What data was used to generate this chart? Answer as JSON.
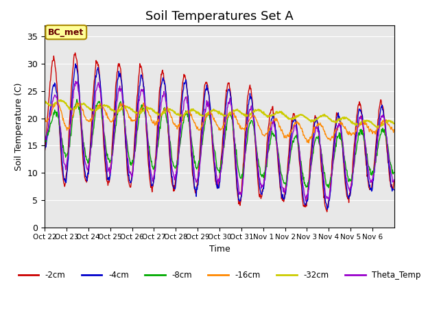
{
  "title": "Soil Temperatures Set A",
  "xlabel": "Time",
  "ylabel": "Soil Temperature (C)",
  "ylim": [
    0,
    37
  ],
  "yticks": [
    0,
    5,
    10,
    15,
    20,
    25,
    30,
    35
  ],
  "x_tick_labels": [
    "Oct 22",
    "Oct 23",
    "Oct 24",
    "Oct 25",
    "Oct 26",
    "Oct 27",
    "Oct 28",
    "Oct 29",
    "Oct 30",
    "Oct 31",
    "Nov 1",
    "Nov 2",
    "Nov 3",
    "Nov 4",
    "Nov 5",
    "Nov 6"
  ],
  "series_colors": {
    "-2cm": "#cc0000",
    "-4cm": "#0000cc",
    "-8cm": "#00aa00",
    "-16cm": "#ff8800",
    "-32cm": "#cccc00",
    "Theta_Temp": "#9900cc"
  },
  "annotation_text": "BC_met",
  "background_color": "#e8e8e8",
  "title_fontsize": 13,
  "n_days": 16,
  "pts_per_day": 48,
  "means_2cm": [
    21,
    20,
    19.5,
    19,
    18.5,
    18,
    17.5,
    17,
    16.5,
    16,
    14,
    13,
    12,
    11.5,
    14,
    15
  ],
  "amps_2cm": [
    9,
    12.5,
    11,
    11,
    11,
    11,
    10.5,
    10.5,
    9,
    12,
    8.5,
    8,
    8.5,
    8.5,
    8.5,
    8
  ],
  "means_4cm": [
    18.5,
    19,
    19,
    18.5,
    18,
    17.5,
    17,
    16.5,
    16,
    15.5,
    13.5,
    12.5,
    12,
    11.5,
    13.5,
    14.5
  ],
  "amps_4cm": [
    5,
    11,
    10,
    10,
    10,
    10,
    10,
    10,
    8.5,
    11,
    7,
    7.5,
    8,
    8,
    8,
    7.5
  ],
  "means_8cm": [
    18,
    18,
    17.5,
    17.5,
    17,
    16.5,
    16,
    16,
    15.5,
    15,
    13.5,
    12.5,
    12,
    12,
    13,
    14
  ],
  "amps_8cm": [
    1.5,
    5,
    5.5,
    5.5,
    5.5,
    5.5,
    5,
    5,
    5,
    6,
    4,
    4.5,
    4.5,
    4.5,
    4.5,
    4
  ],
  "means_16cm": [
    21,
    20.5,
    21,
    21,
    21,
    20.5,
    20,
    19.5,
    19.5,
    19.5,
    18.5,
    18,
    17.5,
    17.5,
    18,
    18.5
  ],
  "amps_16cm": [
    1.5,
    2.5,
    1.5,
    1.5,
    1.5,
    1.5,
    1.5,
    1.5,
    1.5,
    1.5,
    1.5,
    1.5,
    1.5,
    1.5,
    1,
    1
  ],
  "means_32cm": [
    23,
    22.5,
    22,
    21.8,
    21.5,
    21.3,
    21,
    21,
    21,
    21,
    21,
    20.5,
    20,
    20,
    19.5,
    19
  ],
  "amps_32cm": [
    0.3,
    0.8,
    0.5,
    0.5,
    0.5,
    0.5,
    0.5,
    0.5,
    0.5,
    0.5,
    0.5,
    0.5,
    0.5,
    0.5,
    0.5,
    0.5
  ],
  "means_th": [
    19,
    19,
    18.5,
    18,
    17.5,
    17,
    16.5,
    16,
    15.5,
    15,
    13.5,
    12.5,
    12,
    11.5,
    13.5,
    14.5
  ],
  "amps_th": [
    3,
    8,
    8,
    8,
    8,
    8,
    7.5,
    7.5,
    7,
    9,
    6,
    6,
    6.5,
    6.5,
    6.5,
    6
  ]
}
